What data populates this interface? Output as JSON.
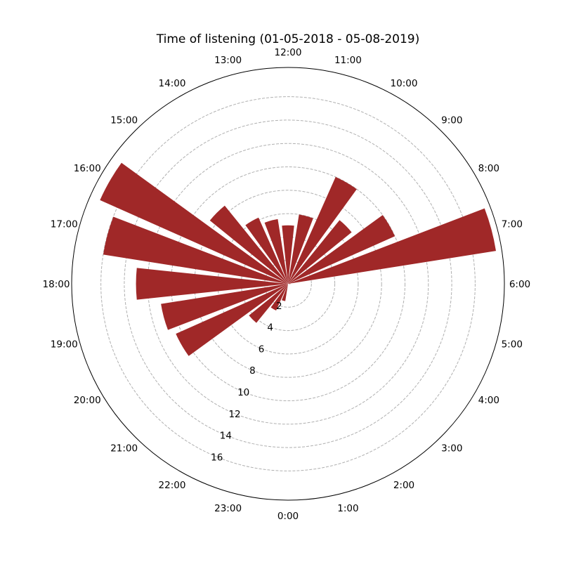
{
  "chart_data": {
    "type": "bar",
    "subtype": "polar",
    "title": "Time of listening (01-05-2018 - 05-08-2019)",
    "categories": [
      "0:00",
      "1:00",
      "2:00",
      "3:00",
      "4:00",
      "5:00",
      "6:00",
      "7:00",
      "8:00",
      "9:00",
      "10:00",
      "11:00",
      "12:00",
      "13:00",
      "14:00",
      "15:00",
      "16:00",
      "17:00",
      "18:00",
      "19:00",
      "20:00",
      "21:00",
      "22:00",
      "23:00"
    ],
    "values": [
      0,
      0,
      0,
      0,
      0,
      0,
      0.2,
      18.0,
      10.0,
      7.0,
      10.0,
      6.0,
      5.0,
      5.6,
      6.2,
      8.6,
      17.6,
      16.0,
      13.0,
      11.0,
      10.5,
      4.3,
      2.5,
      1.5
    ],
    "radial_ticks": [
      2,
      4,
      6,
      8,
      10,
      12,
      14,
      16
    ],
    "rlim": [
      0,
      18.5
    ],
    "direction": "counterclockwise",
    "zero_location": "bottom",
    "grid": true,
    "colors": {
      "bar": "#a02828",
      "grid": "#b0b0b0",
      "axis": "#000000"
    }
  }
}
